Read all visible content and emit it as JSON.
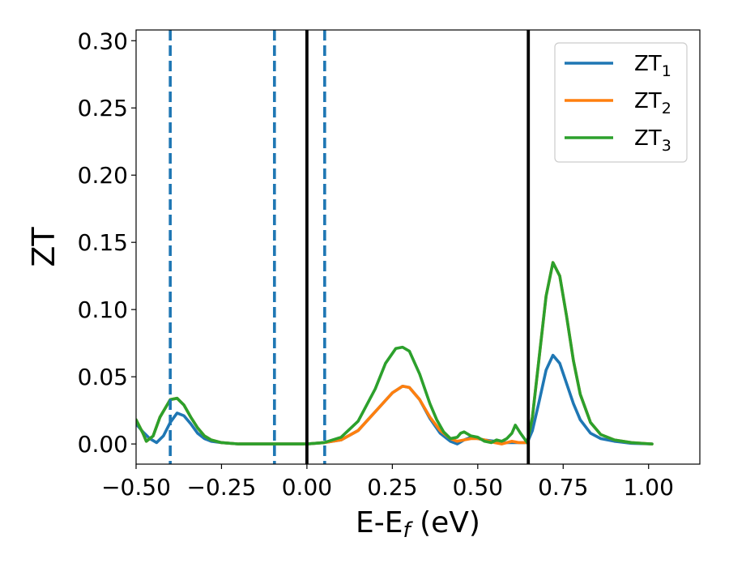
{
  "chart_data": {
    "type": "line",
    "title": "",
    "xlabel": {
      "base": "E-E",
      "sub": "f",
      "suffix": " (eV)"
    },
    "ylabel": "ZT",
    "xlim": [
      -0.5,
      1.15
    ],
    "ylim": [
      -0.015,
      0.308
    ],
    "xticks": [
      -0.5,
      -0.25,
      0.0,
      0.25,
      0.5,
      0.75,
      1.0
    ],
    "xtick_labels": [
      "−0.50",
      "−0.25",
      "0.00",
      "0.25",
      "0.50",
      "0.75",
      "1.00"
    ],
    "yticks": [
      0.0,
      0.05,
      0.1,
      0.15,
      0.2,
      0.25,
      0.3
    ],
    "ytick_labels": [
      "0.00",
      "0.05",
      "0.10",
      "0.15",
      "0.20",
      "0.25",
      "0.30"
    ],
    "grid": false,
    "legend_position": "top-right",
    "vlines": [
      {
        "x": -0.4,
        "style": "dashed",
        "color": "#1f77b4"
      },
      {
        "x": -0.095,
        "style": "dashed",
        "color": "#1f77b4"
      },
      {
        "x": 0.0,
        "style": "solid",
        "color": "#000000"
      },
      {
        "x": 0.052,
        "style": "dashed",
        "color": "#1f77b4"
      },
      {
        "x": 0.648,
        "style": "solid",
        "color": "#000000"
      }
    ],
    "series": [
      {
        "name": "ZT",
        "sub": "1",
        "color": "#1f77b4",
        "x": [
          -0.5,
          -0.48,
          -0.46,
          -0.44,
          -0.42,
          -0.4,
          -0.38,
          -0.36,
          -0.34,
          -0.32,
          -0.3,
          -0.28,
          -0.25,
          -0.2,
          -0.1,
          0.0,
          0.05,
          0.1,
          0.15,
          0.2,
          0.25,
          0.28,
          0.3,
          0.33,
          0.36,
          0.39,
          0.42,
          0.44,
          0.46,
          0.48,
          0.5,
          0.52,
          0.55,
          0.57,
          0.6,
          0.62,
          0.645,
          0.66,
          0.68,
          0.7,
          0.72,
          0.74,
          0.76,
          0.78,
          0.8,
          0.83,
          0.86,
          0.9,
          0.95,
          1.01
        ],
        "y": [
          0.015,
          0.009,
          0.004,
          0.001,
          0.006,
          0.016,
          0.023,
          0.021,
          0.015,
          0.008,
          0.004,
          0.002,
          0.001,
          0.0,
          0.0,
          0.0,
          0.001,
          0.003,
          0.01,
          0.024,
          0.038,
          0.043,
          0.042,
          0.033,
          0.019,
          0.008,
          0.002,
          0.0,
          0.003,
          0.005,
          0.004,
          0.003,
          0.002,
          0.001,
          0.001,
          0.001,
          0.001,
          0.01,
          0.032,
          0.055,
          0.066,
          0.06,
          0.045,
          0.03,
          0.018,
          0.008,
          0.004,
          0.002,
          0.0005,
          0.0
        ]
      },
      {
        "name": "ZT",
        "sub": "2",
        "color": "#ff7f0e",
        "x": [
          -0.5,
          -0.48,
          -0.47,
          -0.45,
          -0.43,
          -0.4,
          -0.38,
          -0.36,
          -0.34,
          -0.32,
          -0.3,
          -0.28,
          -0.25,
          -0.2,
          -0.1,
          0.0,
          0.05,
          0.1,
          0.15,
          0.2,
          0.25,
          0.28,
          0.3,
          0.33,
          0.36,
          0.39,
          0.42,
          0.44,
          0.46,
          0.48,
          0.5,
          0.52,
          0.55,
          0.57,
          0.6,
          0.62,
          0.645,
          0.66,
          0.68,
          0.7,
          0.72,
          0.74,
          0.76,
          0.78,
          0.8,
          0.83,
          0.86,
          0.9,
          0.95,
          1.01
        ],
        "y": [
          0.018,
          0.008,
          0.002,
          0.006,
          0.02,
          0.033,
          0.034,
          0.029,
          0.02,
          0.012,
          0.006,
          0.003,
          0.001,
          0.0,
          0.0,
          0.0,
          0.001,
          0.003,
          0.01,
          0.024,
          0.038,
          0.043,
          0.042,
          0.033,
          0.02,
          0.01,
          0.004,
          0.002,
          0.003,
          0.004,
          0.004,
          0.003,
          0.001,
          0.0,
          0.002,
          0.001,
          0.001,
          0.02,
          0.065,
          0.11,
          0.135,
          0.125,
          0.095,
          0.062,
          0.037,
          0.016,
          0.007,
          0.003,
          0.001,
          0.0
        ]
      },
      {
        "name": "ZT",
        "sub": "3",
        "color": "#2ca02c",
        "x": [
          -0.5,
          -0.48,
          -0.47,
          -0.45,
          -0.43,
          -0.4,
          -0.38,
          -0.36,
          -0.34,
          -0.32,
          -0.3,
          -0.28,
          -0.25,
          -0.2,
          -0.1,
          0.0,
          0.05,
          0.1,
          0.15,
          0.2,
          0.23,
          0.26,
          0.28,
          0.3,
          0.33,
          0.36,
          0.38,
          0.4,
          0.42,
          0.44,
          0.45,
          0.46,
          0.48,
          0.5,
          0.52,
          0.54,
          0.555,
          0.57,
          0.585,
          0.6,
          0.61,
          0.625,
          0.645,
          0.66,
          0.68,
          0.7,
          0.72,
          0.74,
          0.76,
          0.78,
          0.8,
          0.83,
          0.86,
          0.9,
          0.95,
          1.01
        ],
        "y": [
          0.018,
          0.008,
          0.002,
          0.006,
          0.02,
          0.033,
          0.034,
          0.029,
          0.02,
          0.012,
          0.006,
          0.003,
          0.001,
          0.0,
          0.0,
          0.0,
          0.001,
          0.005,
          0.017,
          0.041,
          0.06,
          0.071,
          0.072,
          0.069,
          0.052,
          0.03,
          0.018,
          0.009,
          0.004,
          0.005,
          0.008,
          0.009,
          0.006,
          0.005,
          0.002,
          0.001,
          0.003,
          0.002,
          0.004,
          0.008,
          0.014,
          0.008,
          0.001,
          0.02,
          0.065,
          0.11,
          0.135,
          0.125,
          0.095,
          0.062,
          0.037,
          0.016,
          0.007,
          0.003,
          0.001,
          0.0
        ]
      }
    ]
  }
}
